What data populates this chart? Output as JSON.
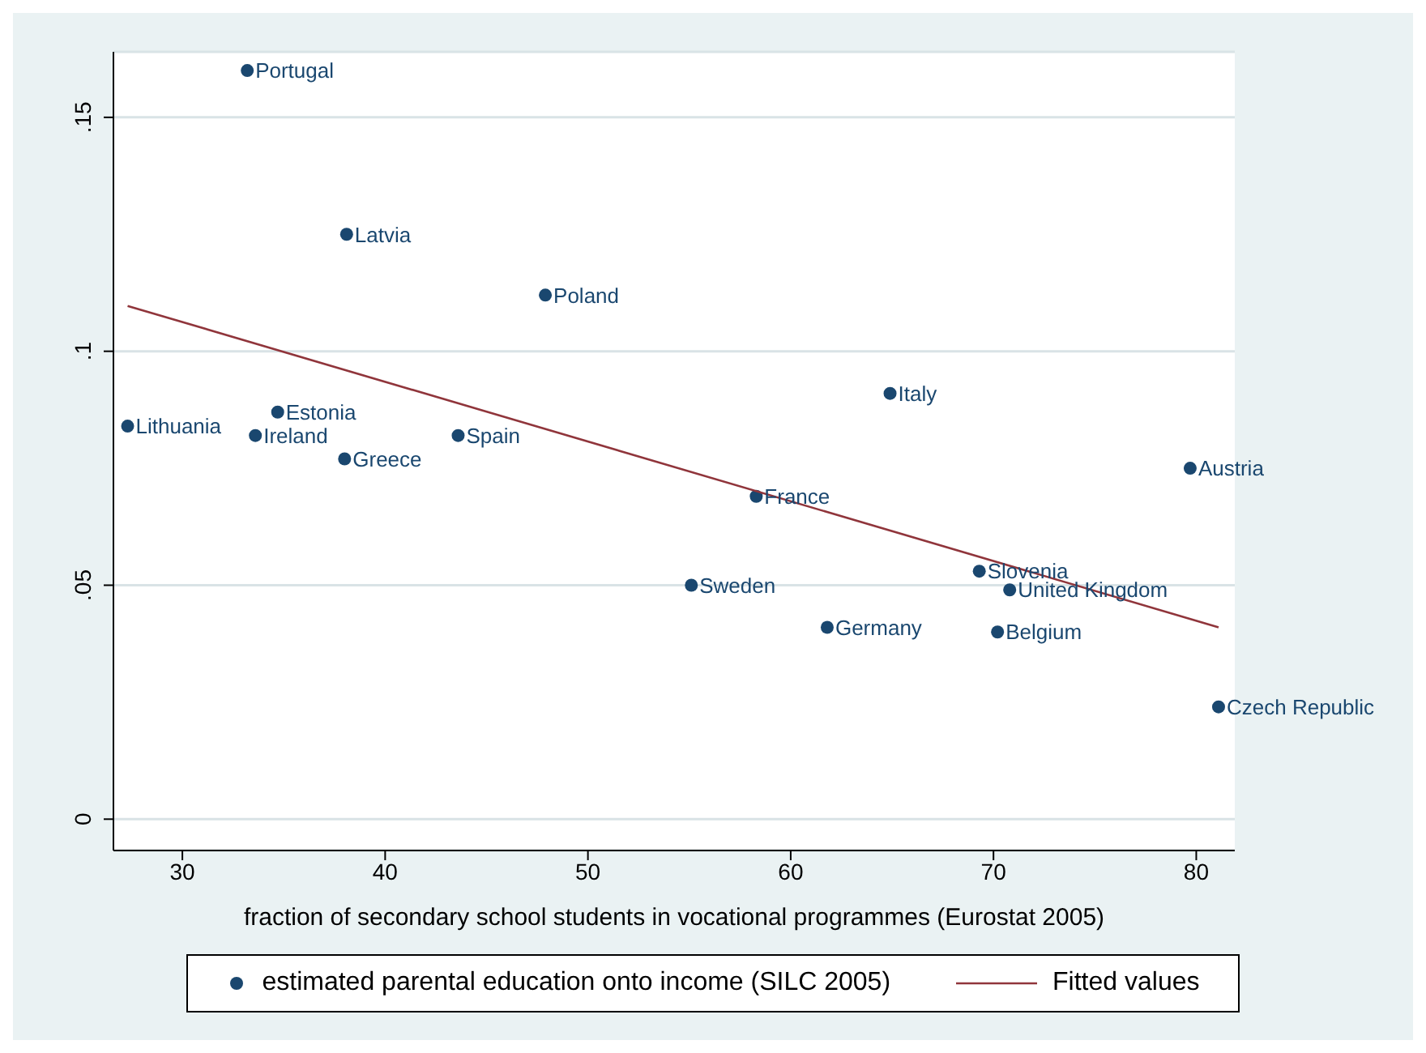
{
  "chart_data": {
    "type": "scatter",
    "xlabel": "fraction of secondary school students in vocational programmes (Eurostat 2005)",
    "xlim": [
      26.6,
      81.9
    ],
    "xticks": [
      30,
      40,
      50,
      60,
      70,
      80
    ],
    "ylim": [
      -0.0067,
      0.164
    ],
    "yticks": [
      {
        "value": 0,
        "label": "0"
      },
      {
        "value": 0.05,
        "label": ".05"
      },
      {
        "value": 0.1,
        "label": ".1"
      },
      {
        "value": 0.15,
        "label": ".15"
      }
    ],
    "grid": "y",
    "legend": "bottom",
    "marker": "circle",
    "series": [
      {
        "name": "estimated parental education onto income (SILC 2005)",
        "color": "#1a476f",
        "x": [
          33.2,
          38.1,
          47.9,
          64.9,
          27.3,
          34.7,
          33.6,
          38.0,
          43.6,
          58.3,
          79.7,
          69.3,
          70.8,
          55.1,
          61.8,
          70.2,
          81.1
        ],
        "values": [
          0.16,
          0.125,
          0.112,
          0.091,
          0.084,
          0.087,
          0.082,
          0.077,
          0.082,
          0.069,
          0.075,
          0.053,
          0.049,
          0.05,
          0.041,
          0.04,
          0.024
        ]
      },
      {
        "name": "Fitted values",
        "type": "line",
        "marker": "none",
        "color": "#90353b",
        "x": [
          27.3,
          81.1
        ],
        "values": [
          0.1097,
          0.041
        ]
      }
    ],
    "annotations": [
      {
        "text": "Portugal",
        "x": 33.2,
        "y": 0.16
      },
      {
        "text": "Latvia",
        "x": 38.1,
        "y": 0.125
      },
      {
        "text": "Poland",
        "x": 47.9,
        "y": 0.112
      },
      {
        "text": "Italy",
        "x": 64.9,
        "y": 0.091
      },
      {
        "text": "Lithuania",
        "x": 27.3,
        "y": 0.084
      },
      {
        "text": "Estonia",
        "x": 34.7,
        "y": 0.087
      },
      {
        "text": "Ireland",
        "x": 33.6,
        "y": 0.082
      },
      {
        "text": "Greece",
        "x": 38.0,
        "y": 0.077
      },
      {
        "text": "Spain",
        "x": 43.6,
        "y": 0.082
      },
      {
        "text": "France",
        "x": 58.3,
        "y": 0.069
      },
      {
        "text": "Austria",
        "x": 79.7,
        "y": 0.075
      },
      {
        "text": "Slovenia",
        "x": 69.3,
        "y": 0.053
      },
      {
        "text": "United Kingdom",
        "x": 70.8,
        "y": 0.049
      },
      {
        "text": "Sweden",
        "x": 55.1,
        "y": 0.05
      },
      {
        "text": "Germany",
        "x": 61.8,
        "y": 0.041
      },
      {
        "text": "Belgium",
        "x": 70.2,
        "y": 0.04
      },
      {
        "text": "Czech Republic",
        "x": 81.1,
        "y": 0.024
      }
    ]
  }
}
